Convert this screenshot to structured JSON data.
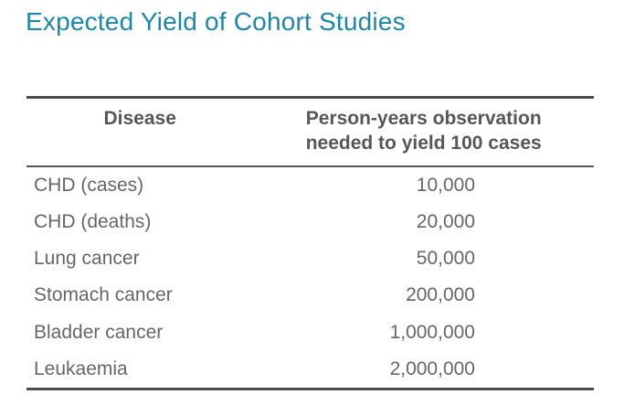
{
  "title": "Expected Yield of Cohort Studies",
  "colors": {
    "title_teal": "#1e87a5",
    "body_text_gray": "#666666",
    "header_text_gray": "#575757",
    "table_border_gray": "#4c4c4c"
  },
  "table": {
    "columns": [
      "Disease",
      "Person-years observation\nneeded to yield 100 cases"
    ],
    "rows": [
      {
        "disease": "CHD (cases)",
        "person_years": "10,000"
      },
      {
        "disease": "CHD (deaths)",
        "person_years": "20,000"
      },
      {
        "disease": "Lung cancer",
        "person_years": "50,000"
      },
      {
        "disease": "Stomach cancer",
        "person_years": "200,000"
      },
      {
        "disease": "Bladder cancer",
        "person_years": "1,000,000"
      },
      {
        "disease": "Leukaemia",
        "person_years": "2,000,000"
      }
    ]
  }
}
